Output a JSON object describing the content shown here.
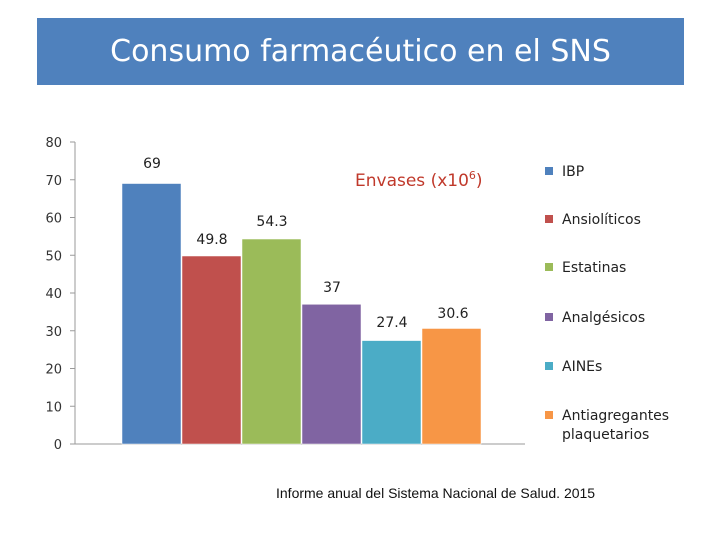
{
  "banner": {
    "title": "Consumo farmacéutico en el SNS"
  },
  "source": "Informe anual del Sistema Nacional de Salud. 2015",
  "chart_data": {
    "type": "bar",
    "title": "Envases (x10",
    "title_superscript": "6",
    "title_suffix": ")",
    "categories": [
      "IBP",
      "Ansiolíticos",
      "Estatinas",
      "Analgésicos",
      "AINEs",
      "Antiagregantes plaquetarios"
    ],
    "legend_lines": [
      [
        "IBP"
      ],
      [
        "Ansiolíticos"
      ],
      [
        "Estatinas"
      ],
      [
        "Analgésicos"
      ],
      [
        "AINEs"
      ],
      [
        "Antiagregantes",
        "plaquetarios"
      ]
    ],
    "values": [
      69,
      49.8,
      54.3,
      37,
      27.4,
      30.6
    ],
    "value_labels": [
      "69",
      "49.8",
      "54.3",
      "37",
      "27.4",
      "30.6"
    ],
    "colors": [
      "#4f81bd",
      "#c0504d",
      "#9bbb59",
      "#8064a2",
      "#4bacc6",
      "#f79646"
    ],
    "ylim": [
      0,
      80
    ],
    "yticks": [
      0,
      10,
      20,
      30,
      40,
      50,
      60,
      70,
      80
    ],
    "grid": false,
    "legend_position": "right"
  }
}
